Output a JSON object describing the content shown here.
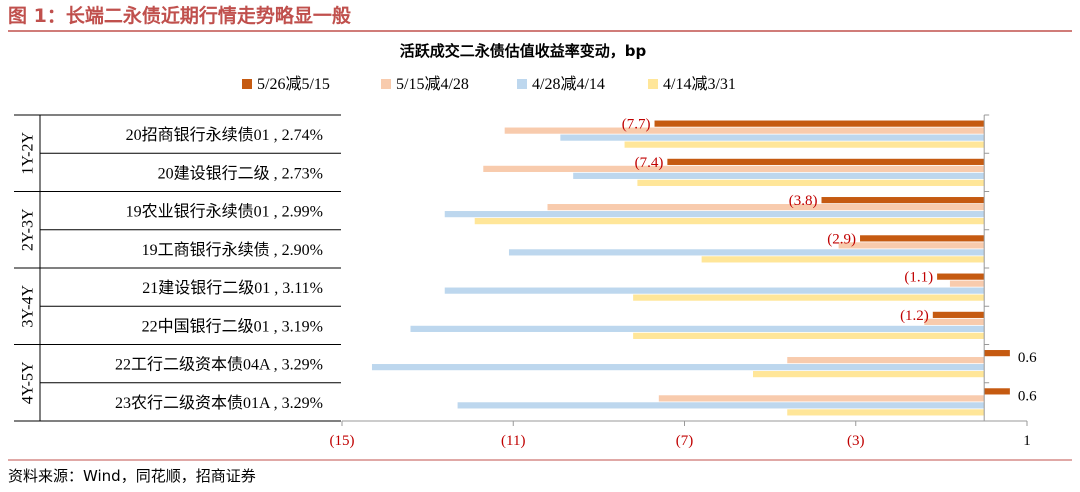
{
  "figure": {
    "title": "图 1：长端二永债近期行情走势略显一般",
    "source": "资料来源：Wind，同花顺，招商证券"
  },
  "colors": {
    "accent": "#c0504d",
    "s1": "#c55a11",
    "s2": "#f8cbad",
    "s3": "#bdd7ee",
    "s4": "#ffe699",
    "negative_label": "#c00000",
    "positive_label": "#000000"
  },
  "chart_data": {
    "type": "bar",
    "orientation": "horizontal",
    "title": "活跃成交二永债估值收益率变动，bp",
    "categories": [
      "20招商银行永续债01 , 2.74%",
      "20建设银行二级 , 2.73%",
      "19农业银行永续债01 , 2.99%",
      "19工商银行永续债 , 2.90%",
      "21建设银行二级01 , 3.11%",
      "22中国银行二级01 , 3.19%",
      "22工行二级资本债04A , 3.29%",
      "23农行二级资本债01A , 3.29%"
    ],
    "groups": [
      {
        "label": "1Y-2Y",
        "span": 2
      },
      {
        "label": "2Y-3Y",
        "span": 2
      },
      {
        "label": "3Y-4Y",
        "span": 2
      },
      {
        "label": "4Y-5Y",
        "span": 2
      }
    ],
    "series": [
      {
        "name": "5/26减5/15",
        "values": [
          -7.7,
          -7.4,
          -3.8,
          -2.9,
          -1.1,
          -1.2,
          0.6,
          0.6
        ]
      },
      {
        "name": "5/15减4/28",
        "values": [
          -11.2,
          -11.7,
          -10.2,
          -3.4,
          -0.8,
          -1.4,
          -4.6,
          -7.6
        ]
      },
      {
        "name": "4/28减4/14",
        "values": [
          -9.9,
          -9.6,
          -12.6,
          -11.1,
          -12.6,
          -13.4,
          -14.3,
          -12.3
        ]
      },
      {
        "name": "4/14减3/31",
        "values": [
          -8.4,
          -8.1,
          -11.9,
          -6.6,
          -8.2,
          -8.2,
          -5.4,
          -4.6
        ]
      }
    ],
    "data_labels": [
      "(7.7)",
      "(7.4)",
      "(3.8)",
      "(2.9)",
      "(1.1)",
      "(1.2)",
      "0.6",
      "0.6"
    ],
    "xlim": [
      -15,
      1
    ],
    "x_ticks": [
      -15,
      -11,
      -7,
      -3,
      1
    ],
    "x_tick_labels": [
      "(15)",
      "(11)",
      "(7)",
      "(3)",
      "1"
    ],
    "legend_position": "top",
    "grid": false
  }
}
